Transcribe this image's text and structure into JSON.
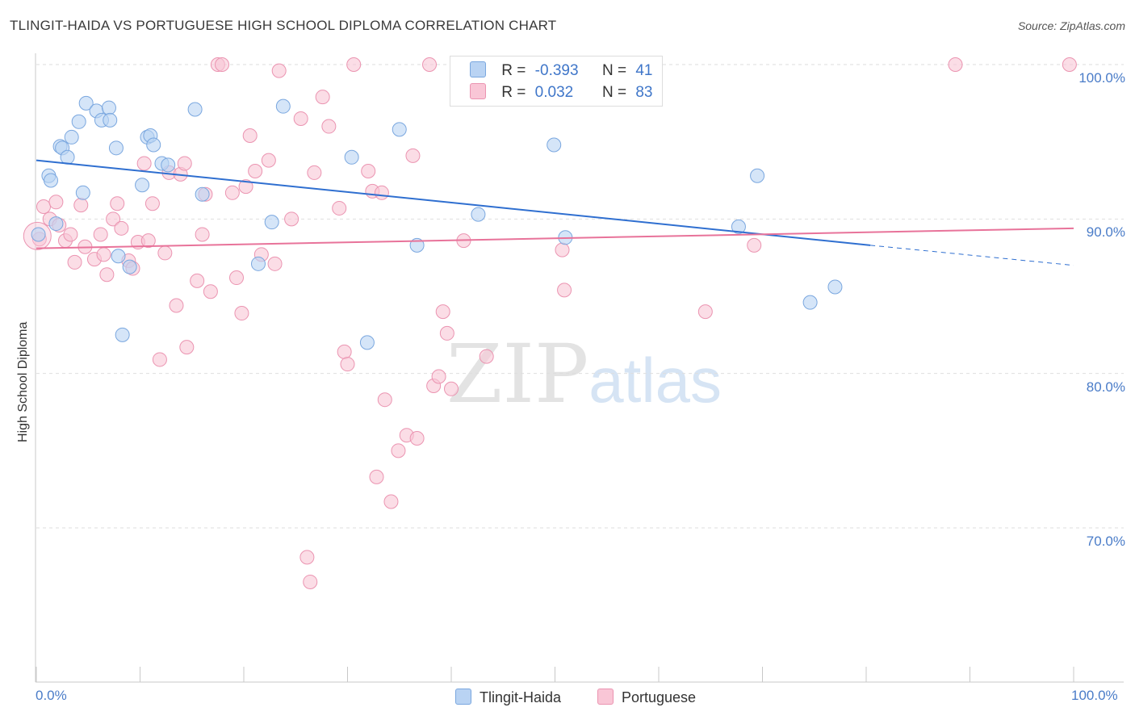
{
  "title": "TLINGIT-HAIDA VS PORTUGUESE HIGH SCHOOL DIPLOMA CORRELATION CHART",
  "source": "Source: ZipAtlas.com",
  "watermark": {
    "zip": "ZIP",
    "atlas": "atlas"
  },
  "legend": {
    "rows": [
      {
        "r_label": "R =",
        "r_value": "-0.393",
        "n_label": "N =",
        "n_value": "41"
      },
      {
        "r_label": "R =",
        "r_value": "0.032",
        "n_label": "N =",
        "n_value": "83"
      }
    ]
  },
  "bottom_legend": {
    "series1": "Tlingit-Haida",
    "series2": "Portuguese"
  },
  "colors": {
    "blue_fill": "#b9d3f3",
    "blue_stroke": "#7aa7df",
    "blue_line": "#2f6fd0",
    "pink_fill": "#f9c6d6",
    "pink_stroke": "#eb94b1",
    "pink_line": "#e8739a",
    "tick_text": "#4a7cc8"
  },
  "chart_data": {
    "type": "scatter",
    "title": "TLINGIT-HAIDA VS PORTUGUESE HIGH SCHOOL DIPLOMA CORRELATION CHART",
    "xlabel": "",
    "ylabel": "High School Diploma",
    "x_ticks": [
      "0.0%",
      "100.0%"
    ],
    "y_ticks": [
      "100.0%",
      "90.0%",
      "80.0%",
      "70.0%"
    ],
    "xlim": [
      0,
      100
    ],
    "ylim": [
      60.0,
      101.5
    ],
    "grid": true,
    "legend_position": "top-center",
    "series": [
      {
        "name": "Tlingit-Haida",
        "trend": {
          "x": [
            0,
            80.4
          ],
          "y": [
            93.8,
            88.3
          ],
          "dashed_to": [
            100,
            87.0
          ]
        },
        "points": [
          [
            0.2,
            89.0
          ],
          [
            1.2,
            92.8
          ],
          [
            1.4,
            92.5
          ],
          [
            1.9,
            89.7
          ],
          [
            2.3,
            94.7
          ],
          [
            2.5,
            94.6
          ],
          [
            3.0,
            94.0
          ],
          [
            3.4,
            95.3
          ],
          [
            4.1,
            96.3
          ],
          [
            4.5,
            91.7
          ],
          [
            4.8,
            97.5
          ],
          [
            5.8,
            97.0
          ],
          [
            6.3,
            96.4
          ],
          [
            7.0,
            97.2
          ],
          [
            7.1,
            96.4
          ],
          [
            7.7,
            94.6
          ],
          [
            7.9,
            87.6
          ],
          [
            8.3,
            82.5
          ],
          [
            9.0,
            86.9
          ],
          [
            10.2,
            92.2
          ],
          [
            10.7,
            95.3
          ],
          [
            11.0,
            95.4
          ],
          [
            11.3,
            94.8
          ],
          [
            12.1,
            93.6
          ],
          [
            12.7,
            93.5
          ],
          [
            15.3,
            97.1
          ],
          [
            16.0,
            91.6
          ],
          [
            21.4,
            87.1
          ],
          [
            22.7,
            89.8
          ],
          [
            23.8,
            97.3
          ],
          [
            30.4,
            94.0
          ],
          [
            31.9,
            82.0
          ],
          [
            35.0,
            95.8
          ],
          [
            36.7,
            88.3
          ],
          [
            42.6,
            90.3
          ],
          [
            51.0,
            88.8
          ],
          [
            49.9,
            94.8
          ],
          [
            67.7,
            89.5
          ],
          [
            69.5,
            92.8
          ],
          [
            74.6,
            84.6
          ],
          [
            77.0,
            85.6
          ]
        ]
      },
      {
        "name": "Portuguese",
        "trend": {
          "x": [
            0,
            100
          ],
          "y": [
            88.1,
            89.4
          ]
        },
        "points": [
          [
            0.3,
            88.7
          ],
          [
            0.7,
            90.8
          ],
          [
            1.3,
            90.0
          ],
          [
            1.9,
            91.1
          ],
          [
            2.2,
            89.6
          ],
          [
            2.8,
            88.6
          ],
          [
            3.3,
            89.0
          ],
          [
            3.7,
            87.2
          ],
          [
            4.3,
            90.9
          ],
          [
            4.7,
            88.2
          ],
          [
            5.6,
            87.4
          ],
          [
            6.2,
            89.0
          ],
          [
            6.5,
            87.7
          ],
          [
            6.8,
            86.4
          ],
          [
            7.4,
            90.0
          ],
          [
            7.8,
            91.0
          ],
          [
            8.2,
            89.4
          ],
          [
            8.9,
            87.3
          ],
          [
            9.3,
            86.8
          ],
          [
            9.8,
            88.5
          ],
          [
            10.4,
            93.6
          ],
          [
            10.8,
            88.6
          ],
          [
            11.2,
            91.0
          ],
          [
            11.9,
            80.9
          ],
          [
            12.4,
            87.8
          ],
          [
            12.8,
            93.0
          ],
          [
            13.5,
            84.4
          ],
          [
            13.9,
            92.9
          ],
          [
            14.3,
            93.6
          ],
          [
            14.5,
            81.7
          ],
          [
            15.5,
            86.0
          ],
          [
            16.0,
            89.0
          ],
          [
            16.3,
            91.6
          ],
          [
            16.8,
            85.3
          ],
          [
            17.5,
            100.0
          ],
          [
            17.9,
            100.0
          ],
          [
            18.9,
            91.7
          ],
          [
            19.3,
            86.2
          ],
          [
            19.8,
            83.9
          ],
          [
            20.2,
            92.1
          ],
          [
            20.6,
            95.4
          ],
          [
            21.1,
            93.1
          ],
          [
            21.7,
            87.7
          ],
          [
            22.4,
            93.8
          ],
          [
            23.0,
            87.1
          ],
          [
            23.4,
            99.6
          ],
          [
            24.6,
            90.0
          ],
          [
            25.5,
            96.5
          ],
          [
            26.1,
            68.1
          ],
          [
            26.4,
            66.5
          ],
          [
            26.8,
            93.0
          ],
          [
            27.6,
            97.9
          ],
          [
            28.2,
            96.0
          ],
          [
            29.2,
            90.7
          ],
          [
            29.7,
            81.4
          ],
          [
            30.0,
            80.6
          ],
          [
            30.6,
            100.0
          ],
          [
            32.0,
            93.1
          ],
          [
            32.4,
            91.8
          ],
          [
            32.8,
            73.3
          ],
          [
            33.3,
            91.7
          ],
          [
            33.6,
            78.3
          ],
          [
            34.2,
            71.7
          ],
          [
            34.9,
            75.0
          ],
          [
            35.7,
            76.0
          ],
          [
            36.3,
            94.1
          ],
          [
            36.7,
            75.8
          ],
          [
            37.9,
            100.0
          ],
          [
            38.3,
            79.2
          ],
          [
            38.8,
            79.8
          ],
          [
            39.2,
            84.0
          ],
          [
            39.6,
            82.6
          ],
          [
            40.0,
            79.0
          ],
          [
            41.2,
            88.6
          ],
          [
            43.4,
            81.1
          ],
          [
            43.8,
            100.0
          ],
          [
            50.7,
            88.0
          ],
          [
            50.9,
            85.4
          ],
          [
            64.5,
            84.0
          ],
          [
            69.2,
            88.3
          ],
          [
            88.6,
            100.0
          ],
          [
            99.6,
            100.0
          ],
          [
            0.1,
            88.9
          ]
        ]
      }
    ]
  }
}
